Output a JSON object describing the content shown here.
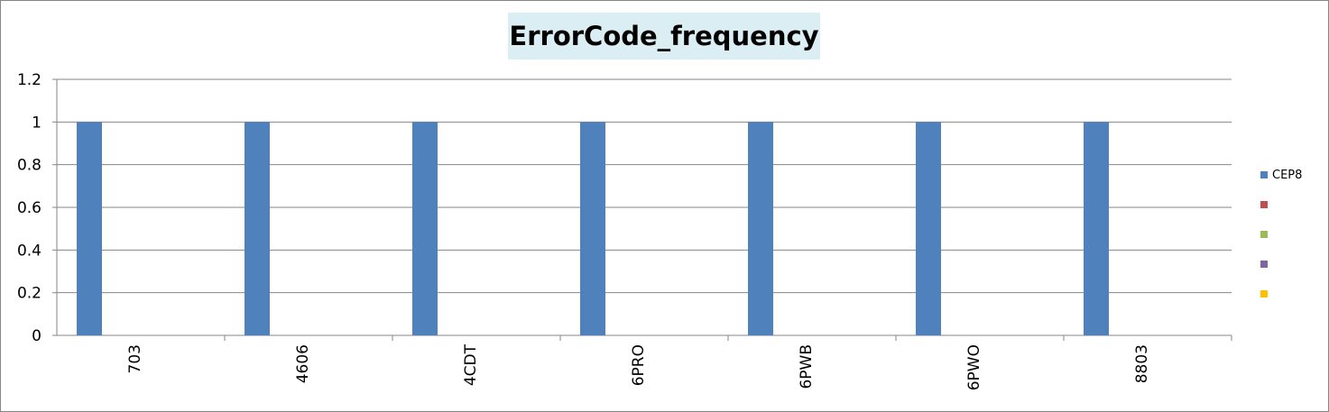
{
  "chart_data": {
    "type": "bar",
    "title": "ErrorCode_frequency",
    "xlabel": "",
    "ylabel": "",
    "categories": [
      "703",
      "4606",
      "4CDT",
      "6PRO",
      "6PWB",
      "6PWO",
      "8803"
    ],
    "series": [
      {
        "name": "CEP8",
        "color": "#4f81bd",
        "values": [
          1,
          1,
          1,
          1,
          1,
          1,
          1
        ]
      }
    ],
    "y_ticks": [
      "0",
      "0.2",
      "0.4",
      "0.6",
      "0.8",
      "1",
      "1.2"
    ],
    "ylim": [
      0,
      1.2
    ],
    "grid": true,
    "legend_position": "right",
    "legend": [
      {
        "label": "CEP8",
        "color": "#4f81bd"
      },
      {
        "label": "",
        "color": "#c0504d"
      },
      {
        "label": "",
        "color": "#9bbb59"
      },
      {
        "label": "",
        "color": "#8064a2"
      },
      {
        "label": "",
        "color": "#ffc000"
      }
    ]
  }
}
